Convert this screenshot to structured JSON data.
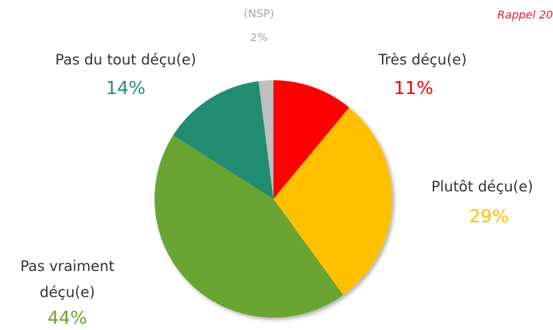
{
  "chart_data": {
    "type": "pie",
    "note_text": "Rappel 20",
    "categories": [
      "Très déçu(e)",
      "Plutôt déçu(e)",
      "Pas vraiment déçu(e)",
      "Pas du tout déçu(e)",
      "(NSP)"
    ],
    "values": [
      11,
      29,
      44,
      14,
      2
    ],
    "value_labels": [
      "11%",
      "29%",
      "44%",
      "14%",
      "2%"
    ],
    "colors": [
      "#ff0000",
      "#ffc000",
      "#6aa431",
      "#238c73",
      "#bfbfbf"
    ],
    "label_colors": [
      "#ff0000",
      "#ffc000",
      "#6aa431",
      "#238c73",
      "#a6a6a6"
    ]
  }
}
